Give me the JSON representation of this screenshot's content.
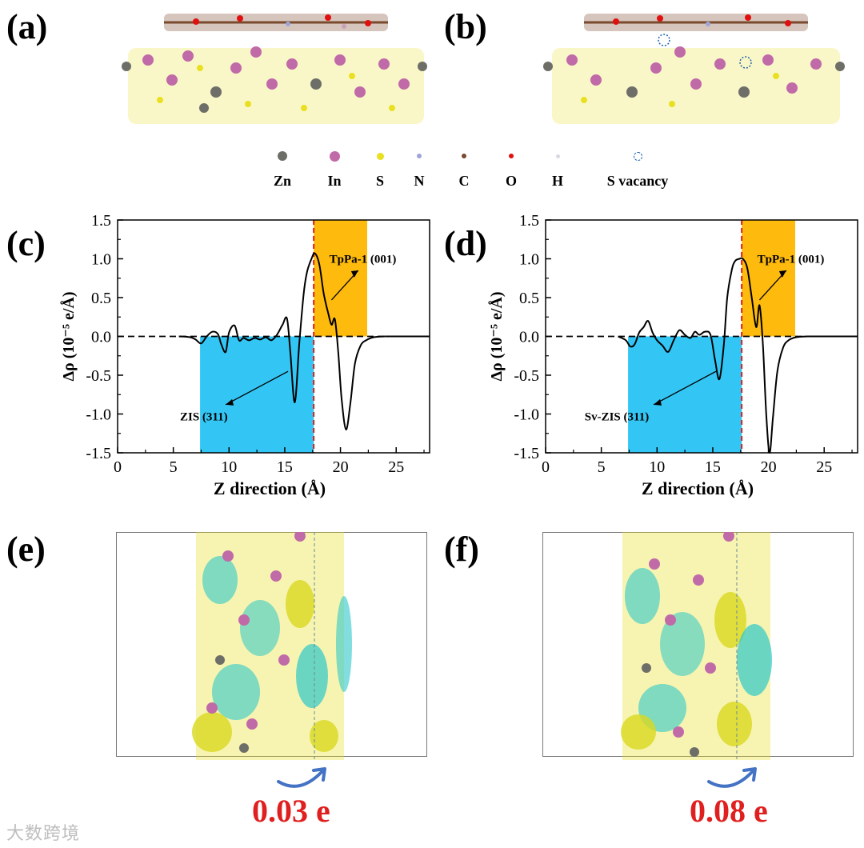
{
  "panels": {
    "a": "(a)",
    "b": "(b)",
    "c": "(c)",
    "d": "(d)",
    "e": "(e)",
    "f": "(f)"
  },
  "legend": [
    {
      "label": "Zn",
      "color": "#6e6e68",
      "icon": "sphere"
    },
    {
      "label": "In",
      "color": "#c06aa8",
      "icon": "sphere"
    },
    {
      "label": "S",
      "color": "#e8e020",
      "icon": "sphere"
    },
    {
      "label": "N",
      "color": "#9fa4d8",
      "icon": "sphere"
    },
    {
      "label": "C",
      "color": "#7a4a2e",
      "icon": "sphere"
    },
    {
      "label": "O",
      "color": "#e01010",
      "icon": "sphere"
    },
    {
      "label": "H",
      "color": "#d8d8e0",
      "icon": "sphere"
    },
    {
      "label": "S vacancy",
      "color": "#1f5fa8",
      "icon": "dashed-circle"
    }
  ],
  "chart_data": [
    {
      "type": "line",
      "panel": "c",
      "title": "",
      "xlabel": "Z direction (Å)",
      "ylabel": "Δρ (10⁻⁵ e/Å)",
      "xlim": [
        0,
        28
      ],
      "ylim": [
        -1.5,
        1.5
      ],
      "xticks": [
        "0",
        "5",
        "10",
        "15",
        "20",
        "25"
      ],
      "yticks": [
        "1.5",
        "1.0",
        "0.5",
        "0.0",
        "-0.5",
        "-1.0",
        "-1.5"
      ],
      "regions": [
        {
          "label": "ZIS (311)",
          "x_range": [
            7.4,
            17.6
          ],
          "color": "#33c6f4"
        },
        {
          "label": "TpPa-1 (001)",
          "x_range": [
            17.6,
            22.4
          ],
          "color": "#ffbb0d"
        }
      ],
      "interface_x": 17.6,
      "series": [
        {
          "name": "Δρ",
          "x": [
            5.5,
            6.5,
            7.0,
            7.5,
            8.0,
            8.5,
            9.0,
            9.3,
            9.7,
            10.0,
            10.5,
            10.9,
            11.3,
            11.8,
            12.3,
            12.8,
            13.3,
            13.8,
            14.3,
            14.8,
            15.2,
            15.5,
            15.9,
            16.3,
            16.7,
            17.0,
            17.4,
            17.7,
            18.1,
            18.5,
            18.9,
            19.2,
            19.5,
            19.8,
            20.1,
            20.5,
            20.9,
            21.3,
            21.8,
            22.3,
            23.0,
            24.0
          ],
          "y": [
            0.0,
            -0.01,
            -0.04,
            -0.09,
            0.0,
            0.06,
            0.03,
            -0.1,
            -0.2,
            0.05,
            0.14,
            -0.05,
            -0.02,
            -0.05,
            -0.02,
            -0.04,
            -0.01,
            -0.05,
            0.02,
            0.15,
            0.23,
            -0.2,
            -0.85,
            -0.1,
            0.55,
            0.83,
            1.0,
            1.07,
            0.93,
            0.55,
            0.3,
            0.15,
            0.22,
            -0.2,
            -0.8,
            -1.2,
            -0.85,
            -0.35,
            -0.12,
            -0.05,
            -0.01,
            0.0
          ]
        }
      ]
    },
    {
      "type": "line",
      "panel": "d",
      "title": "",
      "xlabel": "Z direction (Å)",
      "ylabel": "Δρ (10⁻⁵ e/Å)",
      "xlim": [
        0,
        28
      ],
      "ylim": [
        -1.5,
        1.5
      ],
      "xticks": [
        "0",
        "5",
        "10",
        "15",
        "20",
        "25"
      ],
      "yticks": [
        "1.5",
        "1.0",
        "0.5",
        "0.0",
        "-0.5",
        "-1.0",
        "-1.5"
      ],
      "regions": [
        {
          "label": "Sv-ZIS (311)",
          "x_range": [
            7.4,
            17.6
          ],
          "color": "#33c6f4"
        },
        {
          "label": "TpPa-1 (001)",
          "x_range": [
            17.6,
            22.4
          ],
          "color": "#ffbb0d"
        }
      ],
      "interface_x": 17.6,
      "series": [
        {
          "name": "Δρ",
          "x": [
            6.5,
            7.2,
            7.6,
            8.0,
            8.4,
            8.8,
            9.2,
            9.6,
            10.0,
            10.5,
            11.0,
            11.5,
            12.0,
            12.5,
            13.0,
            13.4,
            13.8,
            14.3,
            14.8,
            15.2,
            15.6,
            16.0,
            16.3,
            16.7,
            17.0,
            17.4,
            17.7,
            18.1,
            18.5,
            18.9,
            19.2,
            19.5,
            19.8,
            20.1,
            20.4,
            20.8,
            21.3,
            21.8,
            22.5,
            23.5
          ],
          "y": [
            0.0,
            -0.05,
            -0.13,
            -0.1,
            0.05,
            0.12,
            0.2,
            0.05,
            -0.05,
            -0.12,
            -0.2,
            -0.05,
            0.08,
            0.02,
            -0.02,
            0.06,
            0.02,
            0.06,
            0.02,
            -0.3,
            -0.55,
            -0.1,
            0.5,
            0.85,
            0.97,
            1.0,
            1.0,
            0.88,
            0.5,
            0.12,
            0.4,
            -0.1,
            -1.0,
            -1.5,
            -1.05,
            -0.45,
            -0.15,
            -0.05,
            -0.01,
            0.0
          ]
        }
      ]
    }
  ],
  "annotations": {
    "c_tppa": "TpPa-1 (001)",
    "c_zis": "ZIS (311)",
    "d_tppa": "TpPa-1 (001)",
    "d_zis": "Sv-ZIS (311)"
  },
  "charge_transfer": {
    "e": "0.03 e",
    "f": "0.08 e"
  },
  "watermark": "大数跨境"
}
